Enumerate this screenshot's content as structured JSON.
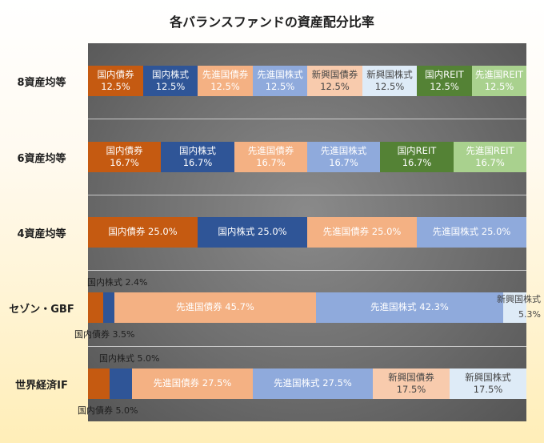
{
  "chart_data": {
    "type": "bar",
    "orientation": "horizontal",
    "stacked": "percent",
    "title": "各バランスファンドの資産配分比率",
    "categories": [
      "8資産均等",
      "6資産均等",
      "4資産均等",
      "セゾン・GBF",
      "世界経済IF"
    ],
    "xlim": [
      0,
      100
    ],
    "grid": true,
    "colors": {
      "国内債券": "#c55a11",
      "国内株式": "#2f5597",
      "先進国債券": "#f4b183",
      "先進国株式": "#8faadc",
      "新興国債券": "#f8cbad",
      "新興国株式": "#deebf7",
      "国内REIT": "#548235",
      "先進国REIT": "#a9d18e"
    },
    "rows": [
      {
        "name": "8資産均等",
        "segments": [
          {
            "asset": "国内債券",
            "value": 12.5,
            "label": [
              "国内債券",
              "12.5%"
            ]
          },
          {
            "asset": "国内株式",
            "value": 12.5,
            "label": [
              "国内株式",
              "12.5%"
            ]
          },
          {
            "asset": "先進国債券",
            "value": 12.5,
            "label": [
              "先進国債券",
              "12.5%"
            ]
          },
          {
            "asset": "先進国株式",
            "value": 12.5,
            "label": [
              "先進国株式",
              "12.5%"
            ]
          },
          {
            "asset": "新興国債券",
            "value": 12.5,
            "label": [
              "新興国債券",
              "12.5%"
            ]
          },
          {
            "asset": "新興国株式",
            "value": 12.5,
            "label": [
              "新興国株式",
              "12.5%"
            ]
          },
          {
            "asset": "国内REIT",
            "value": 12.5,
            "label": [
              "国内REIT",
              "12.5%"
            ]
          },
          {
            "asset": "先進国REIT",
            "value": 12.5,
            "label": [
              "先進国REIT",
              "12.5%"
            ]
          }
        ]
      },
      {
        "name": "6資産均等",
        "segments": [
          {
            "asset": "国内債券",
            "value": 16.7,
            "label": [
              "国内債券",
              "16.7%"
            ]
          },
          {
            "asset": "国内株式",
            "value": 16.7,
            "label": [
              "国内株式",
              "16.7%"
            ]
          },
          {
            "asset": "先進国債券",
            "value": 16.7,
            "label": [
              "先進国債券",
              "16.7%"
            ]
          },
          {
            "asset": "先進国株式",
            "value": 16.7,
            "label": [
              "先進国株式",
              "16.7%"
            ]
          },
          {
            "asset": "国内REIT",
            "value": 16.7,
            "label": [
              "国内REIT",
              "16.7%"
            ]
          },
          {
            "asset": "先進国REIT",
            "value": 16.7,
            "label": [
              "先進国REIT",
              "16.7%"
            ]
          }
        ]
      },
      {
        "name": "4資産均等",
        "segments": [
          {
            "asset": "国内債券",
            "value": 25.0,
            "label": [
              "国内債券 25.0%"
            ]
          },
          {
            "asset": "国内株式",
            "value": 25.0,
            "label": [
              "国内株式 25.0%"
            ]
          },
          {
            "asset": "先進国債券",
            "value": 25.0,
            "label": [
              "先進国債券 25.0%"
            ]
          },
          {
            "asset": "先進国株式",
            "value": 25.0,
            "label": [
              "先進国株式 25.0%"
            ]
          }
        ]
      },
      {
        "name": "セゾン・GBF",
        "segments": [
          {
            "asset": "国内債券",
            "value": 3.5,
            "label": [],
            "outside_label": "国内債券 3.5%",
            "outside": "below"
          },
          {
            "asset": "国内株式",
            "value": 2.4,
            "label": [],
            "outside_label": "国内株式 2.4%",
            "outside": "above"
          },
          {
            "asset": "先進国債券",
            "value": 45.7,
            "label": [
              "先進国債券 45.7%"
            ]
          },
          {
            "asset": "先進国株式",
            "value": 42.3,
            "label": [
              "先進国株式 42.3%"
            ]
          },
          {
            "asset": "新興国株式",
            "value": 5.3,
            "label": [],
            "outside_label": [
              "新興国株式",
              "5.3%"
            ],
            "outside": "right"
          }
        ]
      },
      {
        "name": "世界経済IF",
        "segments": [
          {
            "asset": "国内債券",
            "value": 5.0,
            "label": [],
            "outside_label": "国内債券 5.0%",
            "outside": "below"
          },
          {
            "asset": "国内株式",
            "value": 5.0,
            "label": [],
            "outside_label": "国内株式 5.0%",
            "outside": "above"
          },
          {
            "asset": "先進国債券",
            "value": 27.5,
            "label": [
              "先進国債券 27.5%"
            ]
          },
          {
            "asset": "先進国株式",
            "value": 27.5,
            "label": [
              "先進国株式 27.5%"
            ]
          },
          {
            "asset": "新興国債券",
            "value": 17.5,
            "label": [
              "新興国債券",
              "17.5%"
            ]
          },
          {
            "asset": "新興国株式",
            "value": 17.5,
            "label": [
              "新興国株式",
              "17.5%"
            ]
          }
        ]
      }
    ]
  }
}
